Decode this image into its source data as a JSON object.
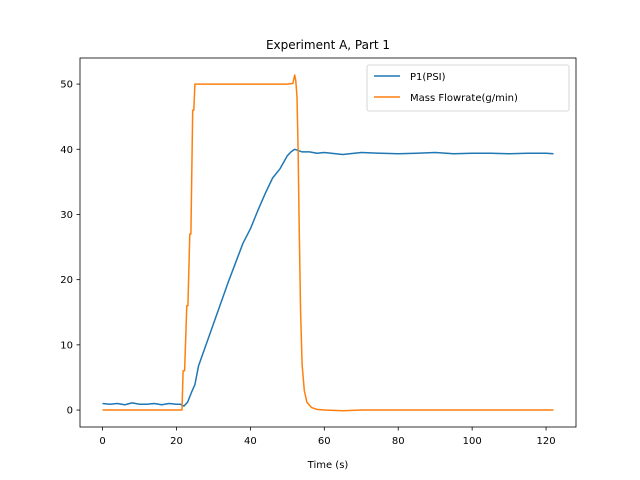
{
  "chart_data": {
    "type": "line",
    "title": "Experiment A, Part 1",
    "xlabel": "Time (s)",
    "ylabel": "",
    "xlim": [
      -6.1,
      128.1
    ],
    "ylim": [
      -2.6,
      54
    ],
    "xticks": [
      0,
      20,
      40,
      60,
      80,
      100,
      120
    ],
    "yticks": [
      0,
      10,
      20,
      30,
      40,
      50
    ],
    "grid": false,
    "legend_position": "top-right",
    "series": [
      {
        "name": "P1(PSI)",
        "color": "#1f77b4",
        "x": [
          0,
          2,
          4,
          6,
          8,
          10,
          12,
          14,
          16,
          18,
          20,
          21,
          22,
          23,
          24,
          25,
          26,
          28,
          30,
          32,
          34,
          36,
          38,
          40,
          42,
          44,
          46,
          48,
          50,
          51,
          52,
          53,
          54,
          56,
          58,
          60,
          65,
          70,
          75,
          80,
          85,
          90,
          95,
          100,
          105,
          110,
          115,
          120,
          122
        ],
        "y": [
          1.0,
          0.9,
          1.0,
          0.8,
          1.1,
          0.9,
          0.9,
          1.0,
          0.8,
          1.0,
          0.9,
          0.9,
          0.6,
          1.2,
          2.6,
          3.9,
          6.8,
          10.0,
          13.2,
          16.4,
          19.6,
          22.6,
          25.6,
          27.8,
          30.6,
          33.2,
          35.6,
          37.0,
          39.0,
          39.6,
          40.0,
          39.8,
          39.6,
          39.6,
          39.4,
          39.5,
          39.2,
          39.5,
          39.4,
          39.3,
          39.4,
          39.5,
          39.3,
          39.4,
          39.4,
          39.3,
          39.4,
          39.4,
          39.3
        ]
      },
      {
        "name": "Mass Flowrate(g/min)",
        "color": "#ff7f0e",
        "x": [
          0,
          5,
          10,
          15,
          20,
          21.5,
          21.8,
          22.2,
          22.8,
          23.1,
          23.6,
          23.9,
          24.4,
          24.7,
          25.0,
          25.2,
          25.5,
          26,
          30,
          35,
          40,
          45,
          50,
          51.5,
          52.0,
          52.3,
          52.6,
          52.9,
          53.2,
          53.6,
          54.0,
          54.6,
          55.3,
          56.5,
          58,
          60,
          65,
          70,
          80,
          90,
          100,
          110,
          122
        ],
        "y": [
          0,
          0,
          0,
          0,
          0,
          0,
          6.0,
          6.0,
          16.0,
          16.0,
          27.0,
          27.0,
          46.0,
          46.0,
          50.0,
          50.0,
          50.0,
          50.0,
          50.0,
          50.0,
          50.0,
          50.0,
          50.0,
          50.1,
          51.4,
          50.5,
          48.0,
          40.0,
          28.0,
          15.0,
          7.0,
          3.0,
          1.2,
          0.4,
          0.1,
          0,
          -0.1,
          0,
          0,
          0,
          0,
          0,
          0
        ]
      }
    ]
  }
}
